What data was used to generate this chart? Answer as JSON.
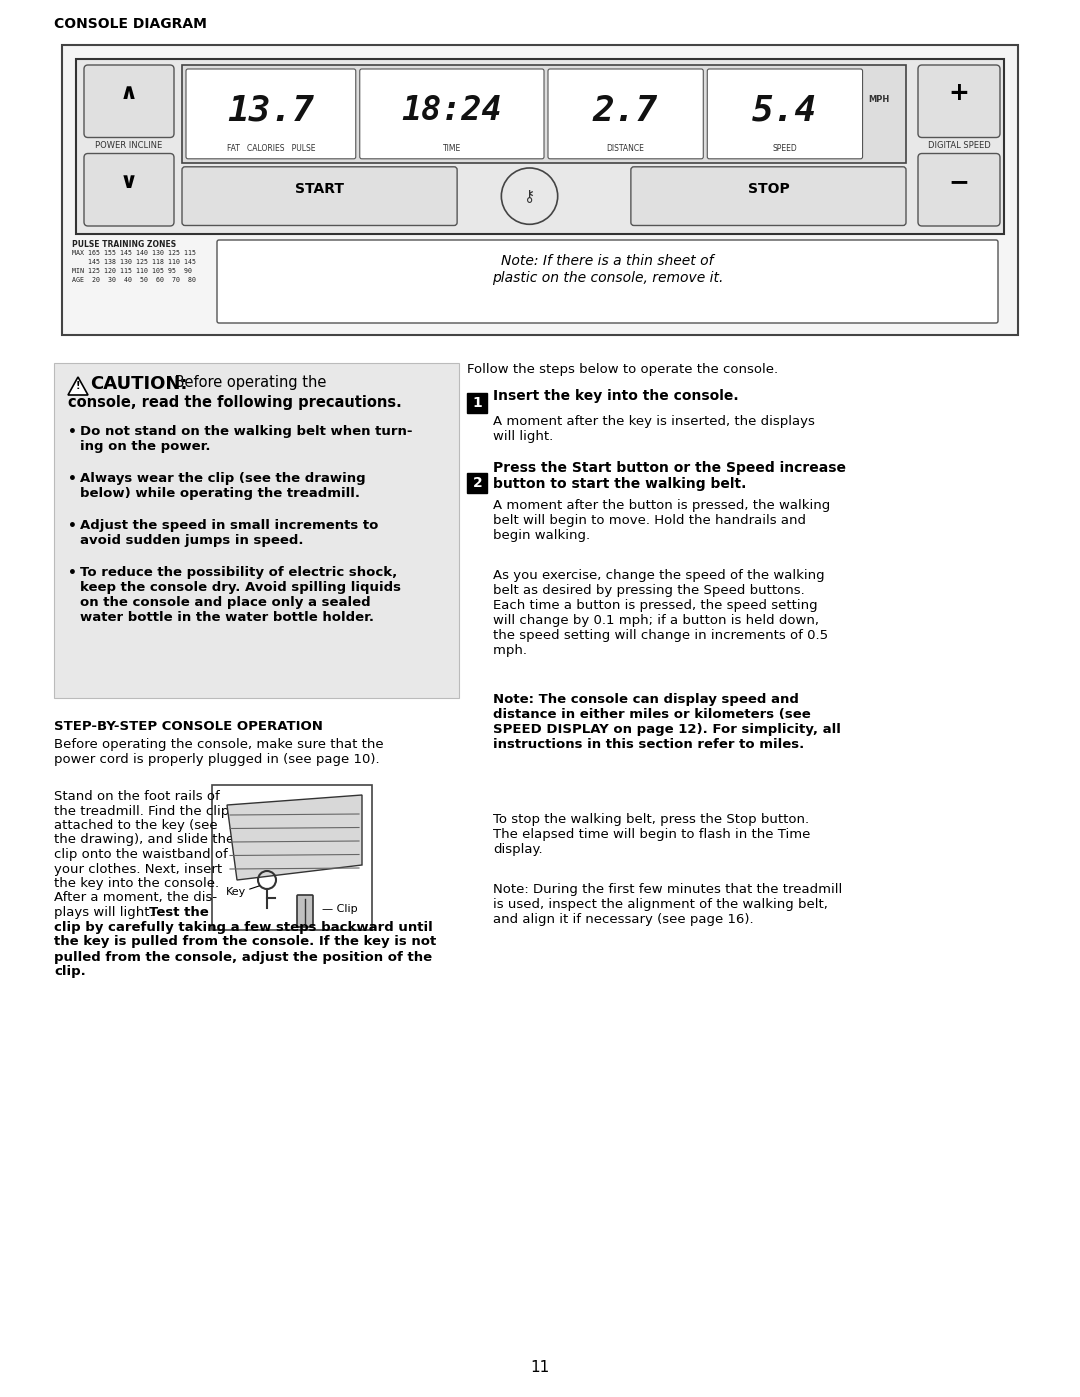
{
  "page_bg": "#ffffff",
  "title_console": "CONSOLE DIAGRAM",
  "note_text": "Note: If there is a thin sheet of\nplastic on the console, remove it.",
  "pulse_zones_title": "PULSE TRAINING ZONES",
  "pulse_zones_lines": [
    "MAX 165 155 145 140 130 125 115",
    "    145 138 130 125 118 110 145",
    "MIN 125 120 115 110 105 95  90",
    "AGE  20  30  40  50  60  70  80"
  ],
  "fat_label": "FAT   CALORIES   PULSE",
  "time_label": "TIME",
  "distance_label": "DISTANCE",
  "speed_label": "SPEED",
  "digital_speed_label": "DIGITAL SPEED",
  "power_incline_label": "POWER INCLINE",
  "display_fat": "13.7",
  "display_time": "18:24",
  "display_distance": "2.7",
  "display_speed": "5.4",
  "mph_label": "MPH",
  "caution_title": "CAUTION:",
  "caution_bullets": [
    "Do not stand on the walking belt when turn-\ning on the power.",
    "Always wear the clip (see the drawing\nbelow) while operating the treadmill.",
    "Adjust the speed in small increments to\navoid sudden jumps in speed.",
    "To reduce the possibility of electric shock,\nkeep the console dry. Avoid spilling liquids\non the console and place only a sealed\nwater bottle in the water bottle holder."
  ],
  "step_header": "STEP-BY-STEP CONSOLE OPERATION",
  "step_intro": "Before operating the console, make sure that the\npower cord is properly plugged in (see page 10).",
  "follow_steps": "Follow the steps below to operate the console.",
  "step1_num": "1",
  "step1_head": "Insert the key into the console.",
  "step1_body": "A moment after the key is inserted, the displays\nwill light.",
  "step2_num": "2",
  "step2_head": "Press the Start button or the Speed increase\nbutton to start the walking belt.",
  "step2_body": "A moment after the button is pressed, the walking\nbelt will begin to move. Hold the handrails and\nbegin walking.",
  "step2_body2_norm": "As you exercise, change the speed of the walking\nbelt as desired by pressing the Speed buttons.\nEach time a button is pressed, the speed setting\nwill change by 0.1 mph; if a button is held down,\nthe speed setting will change in increments of 0.5\nmph. ",
  "step2_body2_bold": "Note: The console can display speed and\ndistance in either miles or kilometers (see\nSPEED DISPLAY on page 12). For simplicity, all\ninstructions in this section refer to miles.",
  "step3_body1": "To stop the walking belt, press the Stop button.\nThe elapsed time will begin to flash in the Time\ndisplay.",
  "step3_note": "Note: During the first few minutes that the treadmill\nis used, inspect the alignment of the walking belt,\nand align it if necessary (see page 16).",
  "left_para1": "Stand on the foot rails of\nthe treadmill. Find the clip\nattached to the key (see\nthe drawing), and slide the\nclip onto the waistband of\nyour clothes. Next, insert\nthe key into the console.\nAfter a moment, the dis-\nplays will light. ",
  "left_para1_bold": "Test the",
  "left_para2_bold": "clip by carefully taking a few steps backward until\nthe key is pulled from the console. If the key is not\npulled from the console, adjust the position of the\nclip.",
  "page_number": "11"
}
